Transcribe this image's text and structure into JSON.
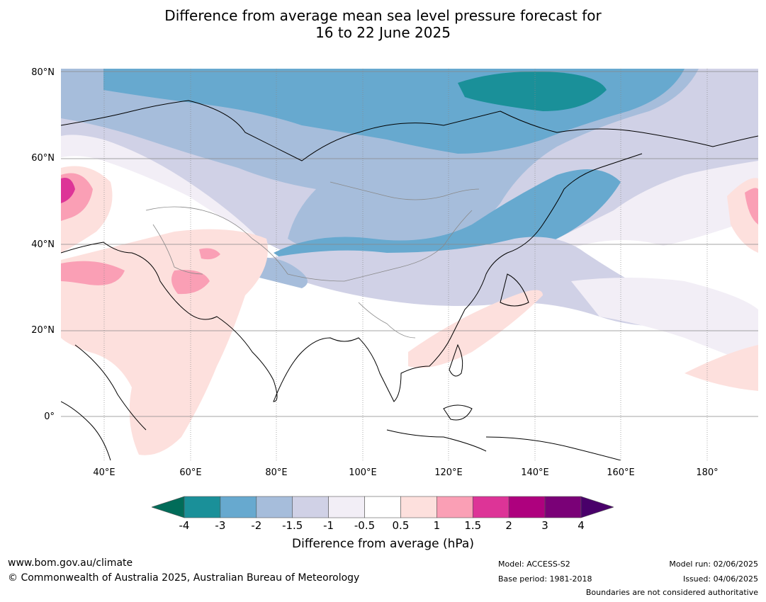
{
  "title": {
    "line1": "Difference from average mean sea level pressure forecast for",
    "line2": "16 to 22 June 2025"
  },
  "map": {
    "lat_labels": [
      "80°N",
      "60°N",
      "40°N",
      "20°N",
      "0°"
    ],
    "lon_labels": [
      "40°E",
      "60°E",
      "80°E",
      "100°E",
      "120°E",
      "140°E",
      "160°E",
      "180°"
    ],
    "lon_range": [
      30,
      192
    ],
    "lat_range": [
      -10,
      81
    ]
  },
  "colorbar": {
    "ticks": [
      "-4",
      "-3",
      "-2",
      "-1.5",
      "-1",
      "-0.5",
      "0.5",
      "1",
      "1.5",
      "2",
      "3",
      "4"
    ],
    "colors": [
      "#1a9099",
      "#67a9cf",
      "#a6bddb",
      "#d0d1e6",
      "#f2eef6",
      "#ffffff",
      "#fde0dd",
      "#fa9fb5",
      "#dd3497",
      "#ae017e",
      "#7a0177"
    ],
    "under_color": "#016c59",
    "over_color": "#49006a",
    "label": "Difference from average (hPa)"
  },
  "footer": {
    "website": "www.bom.gov.au/climate",
    "copyright": "© Commonwealth of Australia 2025, Australian Bureau of Meteorology",
    "model": "Model: ACCESS-S2",
    "base_period": "Base period: 1981-2018",
    "model_run": "Model run: 02/06/2025",
    "issued": "Issued: 04/06/2025",
    "boundaries": "Boundaries are not considered authoritative"
  }
}
